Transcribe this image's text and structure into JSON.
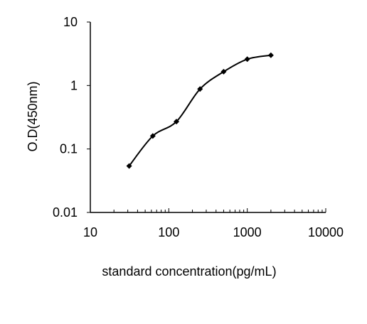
{
  "chart_data": {
    "type": "line",
    "title": "",
    "xlabel": "standard concentration(pg/mL)",
    "ylabel": "O.D(450nm)",
    "xscale": "log",
    "yscale": "log",
    "xlim": [
      10,
      10000
    ],
    "ylim": [
      0.01,
      10
    ],
    "x_ticks": [
      10,
      100,
      1000,
      10000
    ],
    "x_tick_labels": [
      "10",
      "100",
      "1000",
      "10000"
    ],
    "y_ticks": [
      0.01,
      0.1,
      1,
      10
    ],
    "y_tick_labels": [
      "0.01",
      "0.1",
      "1",
      "10"
    ],
    "grid": false,
    "legend": "none",
    "line_color": "#000000",
    "marker": "diamond",
    "smooth": true,
    "series": [
      {
        "x": [
          31.25,
          62.5,
          125,
          250,
          500,
          1000,
          2000
        ],
        "y": [
          0.054,
          0.16,
          0.27,
          0.88,
          1.65,
          2.6,
          3.0
        ]
      }
    ]
  }
}
